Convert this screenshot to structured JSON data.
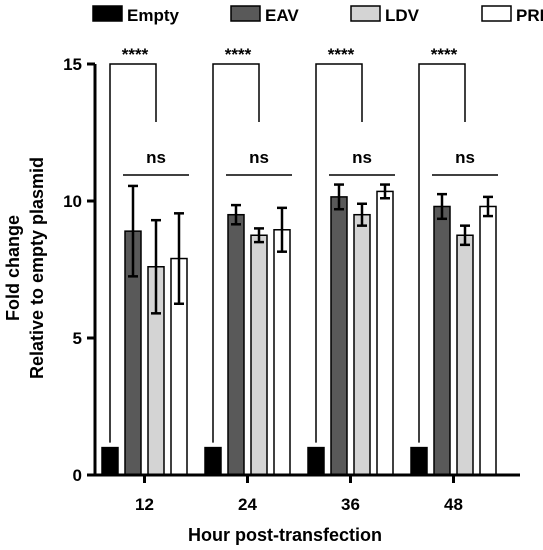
{
  "chart_data": {
    "type": "bar",
    "categories": [
      "12",
      "24",
      "36",
      "48"
    ],
    "xlabel": "Hour post-transfection",
    "ylabel_lines": [
      "Fold change",
      "Relative to empty plasmid"
    ],
    "ylim": [
      0,
      15
    ],
    "yticks": [
      0,
      5,
      10,
      15
    ],
    "grid": false,
    "legend_position": "top",
    "series": [
      {
        "name": "Empty",
        "color": "#000000",
        "values": [
          1.0,
          1.0,
          1.0,
          1.0
        ],
        "err": [
          0,
          0,
          0,
          0
        ]
      },
      {
        "name": "EAV",
        "color": "#595959",
        "values": [
          8.9,
          9.5,
          10.15,
          9.8
        ],
        "err": [
          1.65,
          0.35,
          0.45,
          0.45
        ]
      },
      {
        "name": "LDV",
        "color": "#d4d4d4",
        "values": [
          7.6,
          8.75,
          9.5,
          8.75
        ],
        "err": [
          1.7,
          0.25,
          0.4,
          0.35
        ]
      },
      {
        "name": "PRRSV",
        "color": "#ffffff",
        "values": [
          7.9,
          8.95,
          10.35,
          9.8
        ],
        "err": [
          1.65,
          0.8,
          0.25,
          0.35
        ]
      }
    ],
    "annotations": [
      {
        "group": "12",
        "label_outer": "****",
        "label_inner": "ns"
      },
      {
        "group": "24",
        "label_outer": "****",
        "label_inner": "ns"
      },
      {
        "group": "36",
        "label_outer": "****",
        "label_inner": "ns"
      },
      {
        "group": "48",
        "label_outer": "****",
        "label_inner": "ns"
      }
    ]
  }
}
